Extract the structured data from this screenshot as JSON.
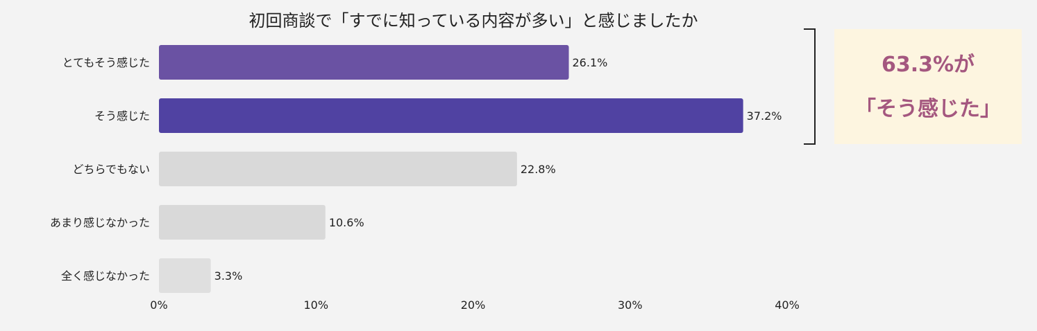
{
  "chart_data": {
    "type": "bar",
    "orientation": "horizontal",
    "title": "初回商談で「すでに知っている内容が多い」と感じましたか",
    "categories": [
      "とてもそう感じた",
      "そう感じた",
      "どちらでもない",
      "あまり感じなかった",
      "全く感じなかった"
    ],
    "values": [
      26.1,
      37.2,
      22.8,
      10.6,
      3.3
    ],
    "value_labels": [
      "26.1%",
      "37.2%",
      "22.8%",
      "10.6%",
      "3.3%"
    ],
    "bar_colors": [
      "#6a52a3",
      "#5042a2",
      "#d9d9d9",
      "#d9d9d9",
      "#dfdfdf"
    ],
    "xlim": [
      0,
      40
    ],
    "xticks": [
      0,
      10,
      20,
      30,
      40
    ],
    "xtick_labels": [
      "0%",
      "10%",
      "20%",
      "30%",
      "40%"
    ],
    "xlabel": "",
    "ylabel": "",
    "grid": false,
    "legend": "none"
  },
  "callout": {
    "line1": "63.3%が",
    "line2": "「そう感じた」",
    "text_color": "#a4577f",
    "bg_color": "#fdf5e0"
  }
}
